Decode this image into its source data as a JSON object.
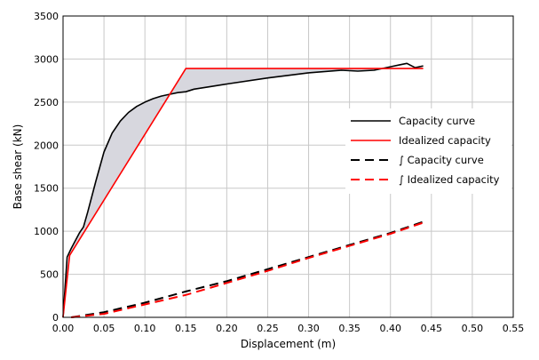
{
  "chart_data": {
    "type": "line",
    "xlabel": "Displacement (m)",
    "ylabel": "Base shear (kN)",
    "xlim": [
      0,
      0.55
    ],
    "ylim": [
      0,
      3500
    ],
    "xticks": [
      "0.00",
      "0.05",
      "0.10",
      "0.15",
      "0.20",
      "0.25",
      "0.30",
      "0.35",
      "0.40",
      "0.45",
      "0.50",
      "0.55"
    ],
    "yticks": [
      "0",
      "500",
      "1000",
      "1500",
      "2000",
      "2500",
      "3000",
      "3500"
    ],
    "grid": true,
    "legend_position": "right",
    "colors": {
      "black": "#000000",
      "red": "#ff0000",
      "fill": "#c8c8d0"
    },
    "series": [
      {
        "name": "Capacity curve",
        "style": "solid",
        "color": "#000000",
        "x": [
          0.0,
          0.005,
          0.01,
          0.02,
          0.025,
          0.03,
          0.04,
          0.05,
          0.06,
          0.07,
          0.08,
          0.09,
          0.1,
          0.11,
          0.12,
          0.13,
          0.14,
          0.15,
          0.16,
          0.18,
          0.2,
          0.25,
          0.3,
          0.34,
          0.36,
          0.38,
          0.4,
          0.41,
          0.42,
          0.43,
          0.44
        ],
        "y": [
          0,
          700,
          800,
          980,
          1050,
          1220,
          1580,
          1920,
          2140,
          2280,
          2380,
          2450,
          2500,
          2540,
          2570,
          2590,
          2610,
          2620,
          2650,
          2680,
          2710,
          2780,
          2840,
          2870,
          2860,
          2870,
          2910,
          2930,
          2950,
          2900,
          2920
        ]
      },
      {
        "name": "Idealized capacity",
        "style": "solid",
        "color": "#ff0000",
        "x": [
          0.0,
          0.008,
          0.15,
          0.44
        ],
        "y": [
          0,
          720,
          2890,
          2890
        ]
      },
      {
        "name": "∫ Capacity curve",
        "style": "dashed",
        "color": "#000000",
        "x": [
          0.01,
          0.05,
          0.1,
          0.15,
          0.2,
          0.25,
          0.3,
          0.35,
          0.4,
          0.44
        ],
        "y": [
          0,
          60,
          170,
          300,
          420,
          560,
          700,
          840,
          980,
          1110
        ]
      },
      {
        "name": "∫ Idealized capacity",
        "style": "dashed",
        "color": "#ff0000",
        "x": [
          0.01,
          0.05,
          0.1,
          0.15,
          0.2,
          0.25,
          0.3,
          0.35,
          0.4,
          0.44
        ],
        "y": [
          0,
          40,
          150,
          260,
          400,
          540,
          690,
          830,
          970,
          1100
        ]
      }
    ]
  }
}
